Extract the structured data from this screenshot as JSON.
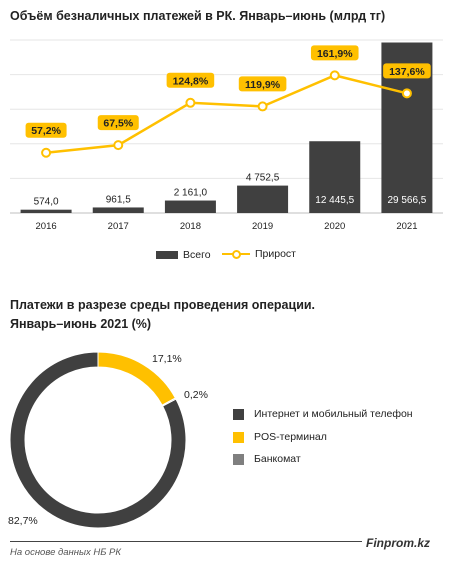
{
  "chart1": {
    "title": "Объём безналичных платежей в РК. Январь–июнь (млрд тг)",
    "legend": {
      "bar": "Всего",
      "line": "Прирост"
    }
  },
  "chart2": {
    "title_line1": "Платежи в разрезе среды проведения операции.",
    "title_line2": "Январь–июнь 2021 (%)"
  },
  "footer": {
    "source": "На основе данных НБ РК",
    "brand": "Finprom.kz"
  },
  "colors": {
    "bar": "#404040",
    "line": "#FFC000",
    "internet": "#404040",
    "pos": "#FFC000",
    "atm": "#7F7F7F"
  },
  "chart_data": [
    {
      "type": "bar",
      "categories": [
        "2016",
        "2017",
        "2018",
        "2019",
        "2020",
        "2021"
      ],
      "series": [
        {
          "name": "Всего",
          "values": [
            574.0,
            961.5,
            2161.0,
            4752.5,
            12445.5,
            29566.5
          ],
          "labels": [
            "574,0",
            "961,5",
            "2 161,0",
            "4 752,5",
            "12 445,5",
            "29 566,5"
          ]
        },
        {
          "name": "Прирост",
          "type": "line",
          "values": [
            57.2,
            67.5,
            124.8,
            119.9,
            161.9,
            137.6
          ],
          "labels": [
            "57,2%",
            "67,5%",
            "124,8%",
            "119,9%",
            "161,9%",
            "137,6%"
          ]
        }
      ],
      "ylim": [
        0,
        30000
      ],
      "y2lim": [
        0,
        180
      ],
      "grid": true,
      "legend_position": "bottom"
    },
    {
      "type": "pie",
      "style": "donut",
      "slices": [
        {
          "name": "Интернет и мобильный телефон",
          "value": 82.7,
          "label": "82,7%"
        },
        {
          "name": "POS-терминал",
          "value": 17.1,
          "label": "17,1%"
        },
        {
          "name": "Банкомат",
          "value": 0.2,
          "label": "0,2%"
        }
      ],
      "legend_position": "right"
    }
  ]
}
